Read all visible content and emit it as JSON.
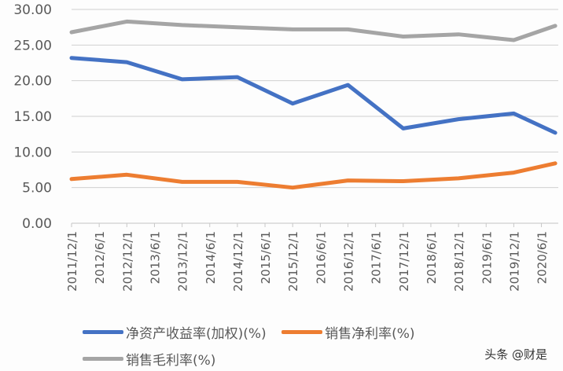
{
  "chart_data": {
    "type": "line",
    "title": "",
    "xlabel": "",
    "ylabel": "",
    "ylim": [
      0,
      30
    ],
    "y_ticks": [
      "0.00",
      "5.00",
      "10.00",
      "15.00",
      "20.00",
      "25.00",
      "30.00"
    ],
    "x_tick_labels": [
      "2011/12/1",
      "2012/6/1",
      "2012/12/1",
      "2013/6/1",
      "2013/12/1",
      "2014/6/1",
      "2014/12/1",
      "2015/6/1",
      "2015/12/1",
      "2016/6/1",
      "2016/12/1",
      "2017/6/1",
      "2017/12/1",
      "2018/6/1",
      "2018/12/1",
      "2019/6/1",
      "2019/12/1",
      "2020/6/1"
    ],
    "grid": true,
    "legend_position": "bottom",
    "x": [
      "2011/12",
      "2012/12",
      "2013/12",
      "2014/12",
      "2015/12",
      "2016/12",
      "2017/12",
      "2018/12",
      "2019/12",
      "2020/9"
    ],
    "x_month_offsets": [
      0,
      12,
      24,
      36,
      48,
      60,
      72,
      84,
      96,
      105
    ],
    "series": [
      {
        "name": "净资产收益率(加权)(%)",
        "color": "#4472C4",
        "values": [
          23.2,
          22.6,
          20.2,
          20.5,
          16.8,
          19.4,
          13.3,
          14.6,
          15.4,
          12.7
        ]
      },
      {
        "name": "销售净利率(%)",
        "color": "#ED7D31",
        "values": [
          6.2,
          6.8,
          5.8,
          5.8,
          5.0,
          6.0,
          5.9,
          6.3,
          7.1,
          8.4
        ]
      },
      {
        "name": "销售毛利率(%)",
        "color": "#A5A5A5",
        "values": [
          26.8,
          28.3,
          27.8,
          27.5,
          27.2,
          27.2,
          26.2,
          26.5,
          25.7,
          27.7
        ]
      }
    ]
  },
  "legend": {
    "items": [
      {
        "label": "净资产收益率(加权)(%)",
        "color": "#4472C4"
      },
      {
        "label": "销售净利率(%)",
        "color": "#ED7D31"
      },
      {
        "label": "销售毛利率(%)",
        "color": "#A5A5A5"
      }
    ]
  },
  "watermark": {
    "text": "头条 @财是"
  }
}
